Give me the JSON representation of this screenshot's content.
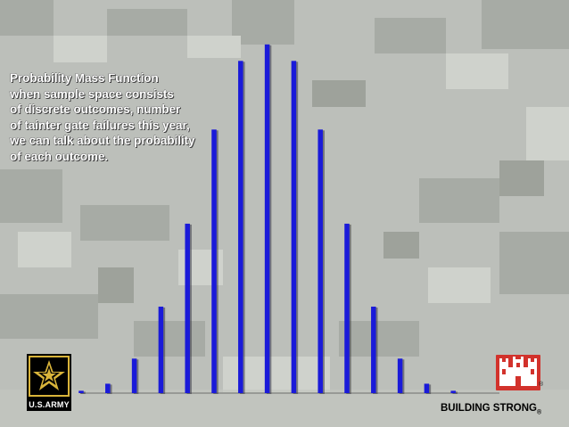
{
  "caption": {
    "lines": [
      "Probability Mass Function",
      "when sample space consists",
      "of discrete outcomes, number",
      "of tainter gate failures this year,",
      "we can talk about the probability",
      "of each outcome."
    ]
  },
  "logos": {
    "army_label": "U.S.ARMY",
    "army_icon": "army-star-icon",
    "castle_icon": "engineer-castle-icon",
    "castle_color": "#d2322c"
  },
  "footer": {
    "brand": "BUILDING STRONG",
    "reg": "®"
  },
  "chart_data": {
    "type": "bar",
    "categories": [
      "",
      "",
      "",
      "",
      "",
      "",
      "",
      "",
      "",
      "",
      "",
      "",
      "",
      "",
      ""
    ],
    "values": [
      0.0012,
      0.0048,
      0.0176,
      0.0441,
      0.0864,
      0.1344,
      0.1694,
      0.1778,
      0.1694,
      0.1344,
      0.0864,
      0.0441,
      0.0176,
      0.0048,
      0.0012
    ],
    "ylim": [
      0,
      0.18
    ],
    "bar_color": "#1a1ad9",
    "grid": false,
    "title": "",
    "xlabel": "",
    "ylabel": ""
  }
}
